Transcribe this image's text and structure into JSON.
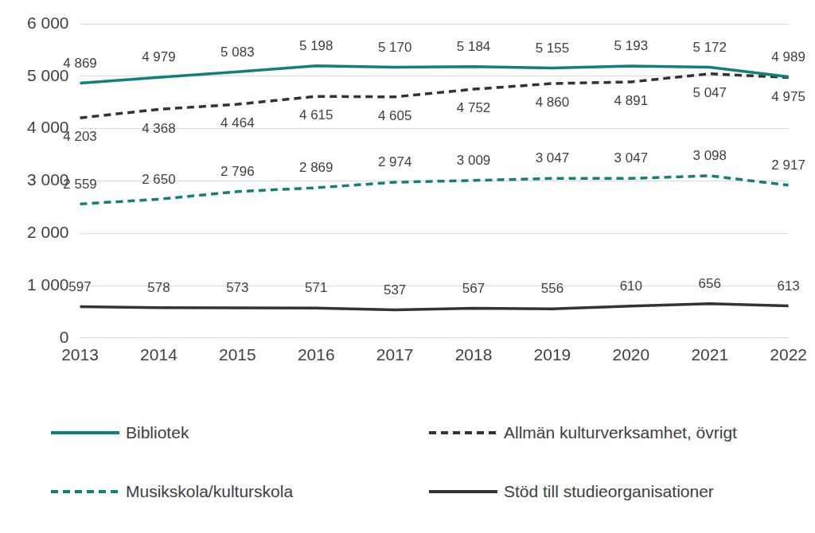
{
  "chart_data": {
    "type": "line",
    "categories": [
      "2013",
      "2014",
      "2015",
      "2016",
      "2017",
      "2018",
      "2019",
      "2020",
      "2021",
      "2022"
    ],
    "series": [
      {
        "name": "Bibliotek",
        "color": "#12807a",
        "line_style": "solid",
        "values": [
          4869,
          4979,
          5083,
          5198,
          5170,
          5184,
          5155,
          5193,
          5172,
          4989
        ],
        "value_labels": [
          "4 869",
          "4 979",
          "5 083",
          "5 198",
          "5 170",
          "5 184",
          "5 155",
          "5 193",
          "5 172",
          "4 989"
        ]
      },
      {
        "name": "Allmän kulturverksamhet, övrigt",
        "color": "#333333",
        "line_style": "dashed",
        "values": [
          4203,
          4368,
          4464,
          4615,
          4605,
          4752,
          4860,
          4891,
          5047,
          4975
        ],
        "value_labels": [
          "4 203",
          "4 368",
          "4 464",
          "4 615",
          "4 605",
          "4 752",
          "4 860",
          "4 891",
          "5 047",
          "4 975"
        ]
      },
      {
        "name": "Musikskola/kulturskola",
        "color": "#12807a",
        "line_style": "dashed",
        "values": [
          2559,
          2650,
          2796,
          2869,
          2974,
          3009,
          3047,
          3047,
          3098,
          2917
        ],
        "value_labels": [
          "2 559",
          "2 650",
          "2 796",
          "2 869",
          "2 974",
          "3 009",
          "3 047",
          "3 047",
          "3 098",
          "2 917"
        ]
      },
      {
        "name": "Stöd till studieorganisationer",
        "color": "#333333",
        "line_style": "solid",
        "values": [
          597,
          578,
          573,
          571,
          537,
          567,
          556,
          610,
          656,
          613
        ],
        "value_labels": [
          "597",
          "578",
          "573",
          "571",
          "537",
          "567",
          "556",
          "610",
          "656",
          "613"
        ]
      }
    ],
    "ylim": [
      0,
      6000
    ],
    "yticks": [
      0,
      {
        "value": 1000,
        "label": "1 000"
      },
      {
        "value": 2000,
        "label": "2 000"
      },
      {
        "value": 3000,
        "label": "3 000"
      },
      {
        "value": 4000,
        "label": "4 000"
      },
      {
        "value": 5000,
        "label": "5 000"
      },
      {
        "value": 6000,
        "label": "6 000"
      }
    ],
    "grid": true,
    "legend": "bottom",
    "data_labels": true
  }
}
